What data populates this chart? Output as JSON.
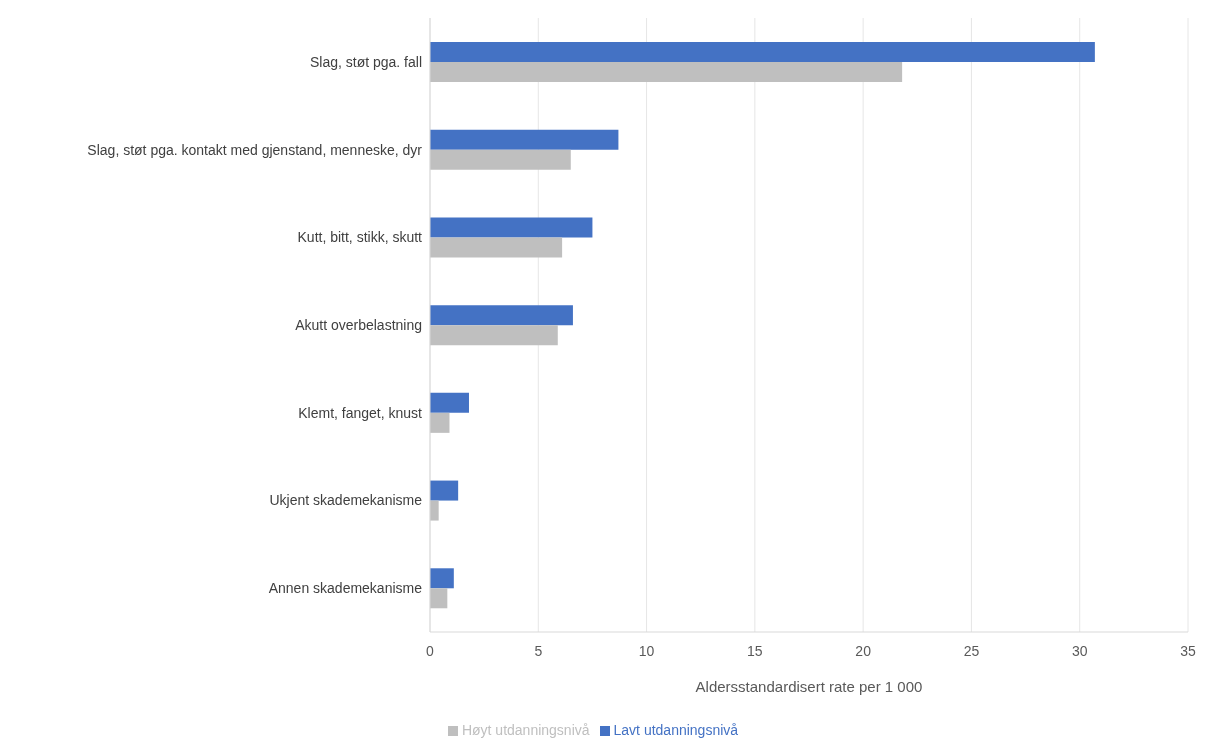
{
  "chart_data": {
    "type": "bar",
    "orientation": "horizontal",
    "xlabel": "Aldersstandardisert rate per 1 000",
    "categories": [
      "Slag, støt pga. fall",
      "Slag, støt pga. kontakt med gjenstand, menneske, dyr",
      "Kutt, bitt, stikk, skutt",
      "Akutt overbelastning",
      "Klemt, fanget, knust",
      "Ukjent skademekanisme",
      "Annen skademekanisme"
    ],
    "series": [
      {
        "name": "Lavt utdanningsnivå",
        "color": "#4472c4",
        "values": [
          30.7,
          8.7,
          7.5,
          6.6,
          1.8,
          1.3,
          1.1
        ]
      },
      {
        "name": "Høyt utdanningsnivå",
        "color": "#bfbfbf",
        "values": [
          21.8,
          6.5,
          6.1,
          5.9,
          0.9,
          0.4,
          0.8
        ]
      }
    ],
    "xlim": [
      0,
      35
    ],
    "xticks": [
      0,
      5,
      10,
      15,
      20,
      25,
      30,
      35
    ],
    "grid": "x",
    "legend": "bottom"
  }
}
